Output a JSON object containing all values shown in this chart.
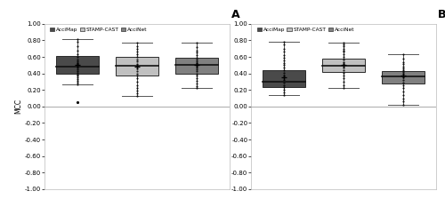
{
  "panel_A": {
    "label": "A",
    "colors": [
      "#4a4a4a",
      "#c0c0c0",
      "#808080"
    ],
    "box_data": [
      {
        "median": 0.48,
        "q1": 0.4,
        "q3": 0.61,
        "whislo": 0.27,
        "whishi": 0.82,
        "mean": 0.5,
        "fliers": [
          0.05
        ]
      },
      {
        "median": 0.49,
        "q1": 0.37,
        "q3": 0.6,
        "whislo": 0.13,
        "whishi": 0.77,
        "mean": 0.48,
        "fliers": []
      },
      {
        "median": 0.5,
        "q1": 0.4,
        "q3": 0.59,
        "whislo": 0.22,
        "whishi": 0.77,
        "mean": 0.5,
        "fliers": []
      }
    ],
    "dots": [
      [
        0.27,
        0.29,
        0.31,
        0.33,
        0.35,
        0.37,
        0.39,
        0.41,
        0.43,
        0.45,
        0.47,
        0.49,
        0.51,
        0.53,
        0.55,
        0.57,
        0.6,
        0.63,
        0.68,
        0.73,
        0.78,
        0.82
      ],
      [
        0.13,
        0.16,
        0.19,
        0.22,
        0.26,
        0.3,
        0.34,
        0.37,
        0.4,
        0.43,
        0.46,
        0.49,
        0.52,
        0.55,
        0.57,
        0.6,
        0.63,
        0.66,
        0.7,
        0.73,
        0.77
      ],
      [
        0.22,
        0.25,
        0.28,
        0.31,
        0.34,
        0.37,
        0.4,
        0.43,
        0.45,
        0.47,
        0.49,
        0.51,
        0.53,
        0.55,
        0.57,
        0.59,
        0.62,
        0.65,
        0.68,
        0.72,
        0.77
      ]
    ]
  },
  "panel_B": {
    "label": "B",
    "colors": [
      "#4a4a4a",
      "#c0c0c0",
      "#808080"
    ],
    "box_data": [
      {
        "median": 0.3,
        "q1": 0.23,
        "q3": 0.44,
        "whislo": 0.14,
        "whishi": 0.78,
        "mean": 0.35,
        "fliers": []
      },
      {
        "median": 0.49,
        "q1": 0.42,
        "q3": 0.58,
        "whislo": 0.22,
        "whishi": 0.77,
        "mean": 0.5,
        "fliers": []
      },
      {
        "median": 0.36,
        "q1": 0.28,
        "q3": 0.43,
        "whislo": 0.02,
        "whishi": 0.63,
        "mean": 0.37,
        "fliers": []
      }
    ],
    "dots": [
      [
        0.14,
        0.17,
        0.2,
        0.23,
        0.26,
        0.29,
        0.32,
        0.35,
        0.38,
        0.41,
        0.44,
        0.47,
        0.5,
        0.53,
        0.56,
        0.59,
        0.62,
        0.66,
        0.7,
        0.75,
        0.78
      ],
      [
        0.22,
        0.26,
        0.3,
        0.34,
        0.38,
        0.41,
        0.44,
        0.47,
        0.49,
        0.51,
        0.54,
        0.57,
        0.6,
        0.63,
        0.66,
        0.68,
        0.7,
        0.73,
        0.75,
        0.77
      ],
      [
        0.02,
        0.06,
        0.1,
        0.14,
        0.18,
        0.22,
        0.26,
        0.29,
        0.32,
        0.35,
        0.37,
        0.4,
        0.42,
        0.44,
        0.46,
        0.48,
        0.51,
        0.54,
        0.58,
        0.63
      ]
    ]
  },
  "ylim": [
    -1.0,
    1.0
  ],
  "yticks": [
    1.0,
    0.8,
    0.6,
    0.4,
    0.2,
    0.0,
    -0.2,
    -0.4,
    -0.6,
    -0.8,
    -1.0
  ],
  "ylabel": "MCC",
  "legend_labels": [
    "AcciMap",
    "STAMP-CAST",
    "AcciNet"
  ],
  "legend_colors": [
    "#4a4a4a",
    "#c0c0c0",
    "#808080"
  ],
  "box_width": 0.72,
  "positions": [
    1,
    2,
    3
  ]
}
